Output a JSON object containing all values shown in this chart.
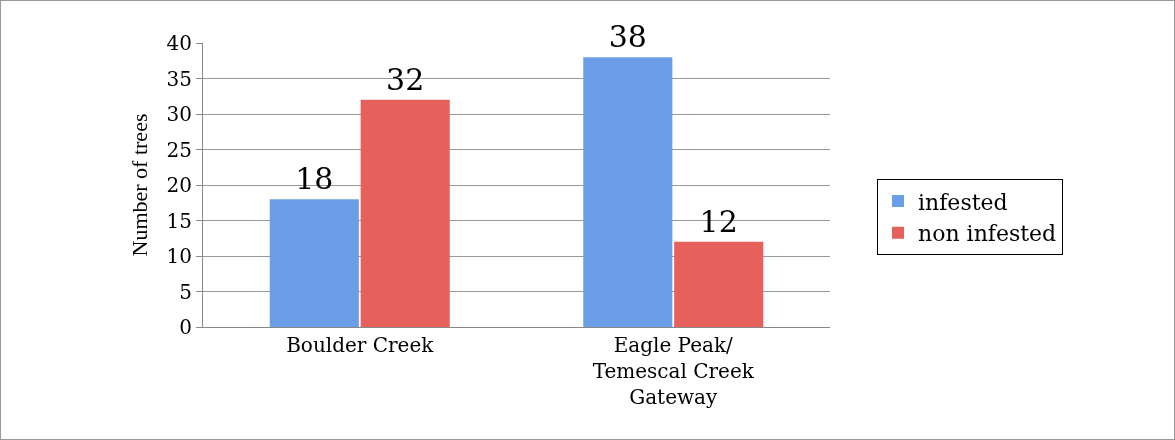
{
  "chart_data": {
    "type": "bar",
    "ylabel": "Number of trees",
    "categories": [
      "Boulder Creek",
      "Eagle Peak/\nTemescal Creek\nGateway"
    ],
    "series": [
      {
        "name": "infested",
        "color": "#6b9ee6",
        "values": [
          18,
          38
        ]
      },
      {
        "name": "non infested",
        "color": "#e6605c",
        "values": [
          32,
          12
        ]
      }
    ],
    "ylim": [
      0,
      40
    ],
    "yticks": [
      0,
      5,
      10,
      15,
      20,
      25,
      30,
      35,
      40
    ],
    "grid": "y",
    "legend": "right",
    "data_labels": true
  }
}
